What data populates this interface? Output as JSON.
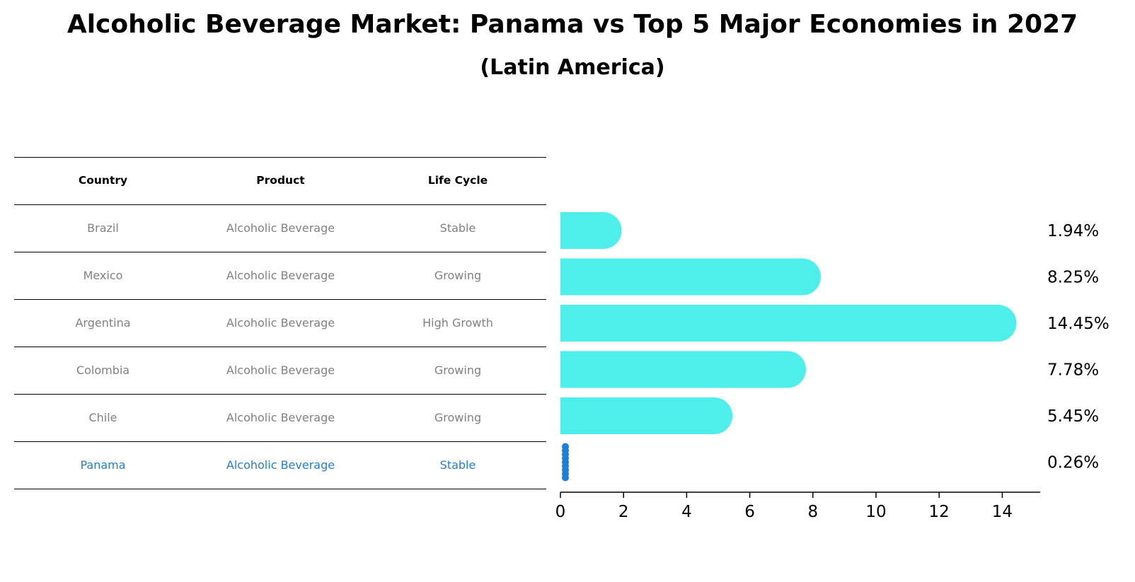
{
  "title": "Alcoholic Beverage Market: Panama vs Top 5 Major Economies in 2027",
  "subtitle": "(Latin America)",
  "table": {
    "headers": [
      "Country",
      "Product",
      "Life Cycle"
    ],
    "rows": [
      {
        "country": "Brazil",
        "product": "Alcoholic Beverage",
        "life_cycle": "Stable"
      },
      {
        "country": "Mexico",
        "product": "Alcoholic Beverage",
        "life_cycle": "Growing"
      },
      {
        "country": "Argentina",
        "product": "Alcoholic Beverage",
        "life_cycle": "High Growth"
      },
      {
        "country": "Colombia",
        "product": "Alcoholic Beverage",
        "life_cycle": "Growing"
      },
      {
        "country": "Chile",
        "product": "Alcoholic Beverage",
        "life_cycle": "Growing"
      },
      {
        "country": "Panama",
        "product": "Alcoholic Beverage",
        "life_cycle": "Stable"
      }
    ]
  },
  "colors": {
    "bar": "#4eeeea",
    "highlight": "#1f7fd6",
    "muted_text": "#808080"
  },
  "chart_data": {
    "type": "bar",
    "orientation": "horizontal",
    "categories": [
      "Brazil",
      "Mexico",
      "Argentina",
      "Colombia",
      "Chile",
      "Panama"
    ],
    "values": [
      1.94,
      8.25,
      14.45,
      7.78,
      5.45,
      0.26
    ],
    "value_labels": [
      "1.94%",
      "8.25%",
      "14.45%",
      "7.78%",
      "5.45%",
      "0.26%"
    ],
    "highlight_category": "Panama",
    "xlim": [
      0,
      15.2
    ],
    "xticks": [
      0,
      2,
      4,
      6,
      8,
      10,
      12,
      14
    ],
    "xlabel": "",
    "ylabel": ""
  }
}
